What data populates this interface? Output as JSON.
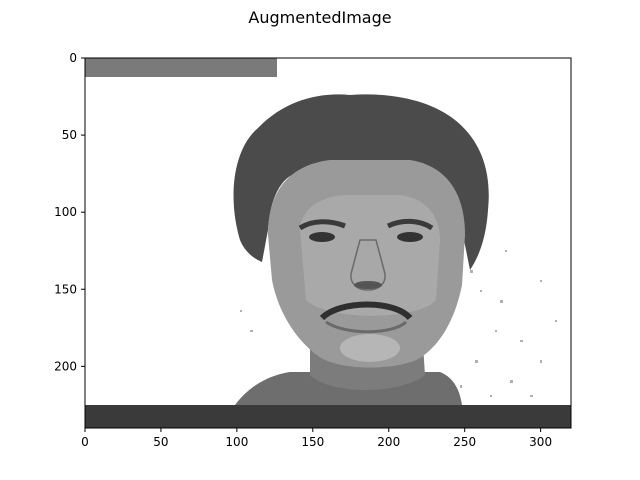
{
  "figure": {
    "title": "AugmentedImage"
  },
  "axes": {
    "x_ticks": [
      "0",
      "50",
      "100",
      "150",
      "200",
      "250",
      "300"
    ],
    "y_ticks": [
      "0",
      "50",
      "100",
      "150",
      "200"
    ],
    "x_range": [
      0,
      320
    ],
    "y_range": [
      0,
      240
    ],
    "grid": false
  },
  "image": {
    "description": "grayscale portrait",
    "colors": {
      "background": "#ffffff",
      "top_bar": "#7a7a7a",
      "bottom_bar": "#3a3a3a",
      "face": "#8e8e8e",
      "hair": "#4a4a4a"
    }
  }
}
